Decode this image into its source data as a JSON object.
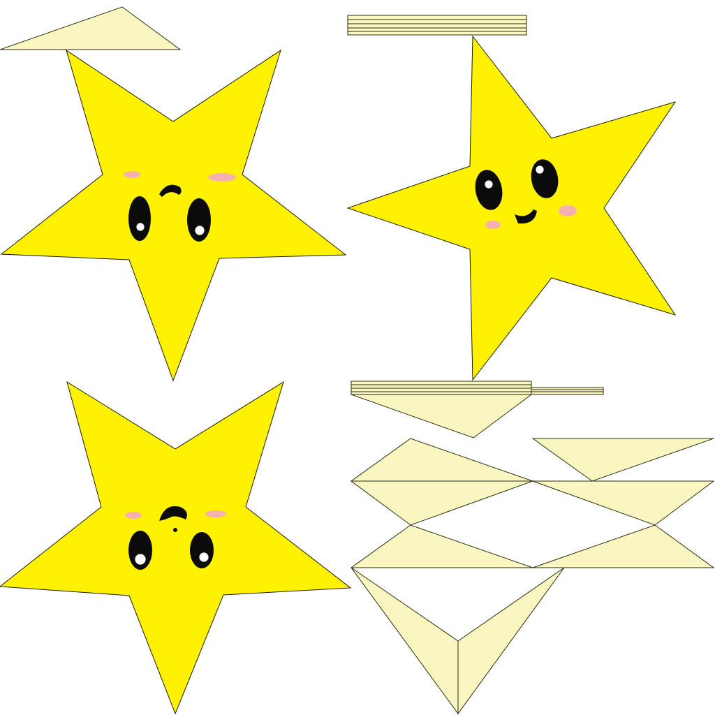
{
  "colors": {
    "background": "#ffffff",
    "star_fill": "#fff200",
    "paper_fill": "#faf6c0",
    "outline": "#2a2a10",
    "eye": "#0b0b0b",
    "blush": "#f6a8c4"
  },
  "stars": [
    {
      "expression": "surprised"
    },
    {
      "expression": "smiling"
    },
    {
      "expression": "surprised"
    }
  ]
}
